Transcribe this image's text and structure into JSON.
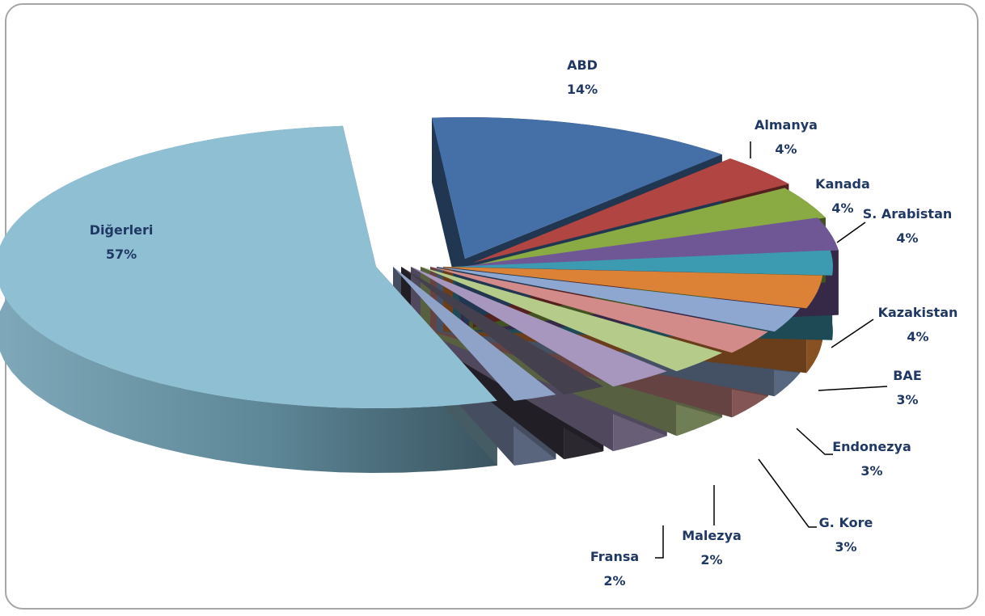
{
  "chart_data": {
    "type": "pie",
    "variant": "3d-exploded",
    "title": "",
    "legend": "none",
    "slices": [
      {
        "label": "ABD",
        "value": 14,
        "display": "14%",
        "color": "#4470a7"
      },
      {
        "label": "Almanya",
        "value": 4,
        "display": "4%",
        "color": "#b04541"
      },
      {
        "label": "Kanada",
        "value": 4,
        "display": "4%",
        "color": "#8aaa44"
      },
      {
        "label": "S. Arabistan",
        "value": 4,
        "display": "4%",
        "color": "#6f5694"
      },
      {
        "label": "",
        "value": 3,
        "display": "",
        "color": "#3c9ab1"
      },
      {
        "label": "Kazakistan",
        "value": 4,
        "display": "4%",
        "color": "#dc8236"
      },
      {
        "label": "",
        "value": 3,
        "display": "",
        "color": "#8ea7d0"
      },
      {
        "label": "BAE",
        "value": 3,
        "display": "3%",
        "color": "#d38b89"
      },
      {
        "label": "Endonezya",
        "value": 3,
        "display": "3%",
        "color": "#b5cb8a"
      },
      {
        "label": "G. Kore",
        "value": 3,
        "display": "3%",
        "color": "#a797bf"
      },
      {
        "label": "Malezya",
        "value": 2,
        "display": "2%",
        "color": "#45404d"
      },
      {
        "label": "Fransa",
        "value": 2,
        "display": "2%",
        "color": "#8fa3c9"
      },
      {
        "label": "Diğerleri",
        "value": 57,
        "display": "57%",
        "color": "#8fbfd3"
      }
    ]
  }
}
